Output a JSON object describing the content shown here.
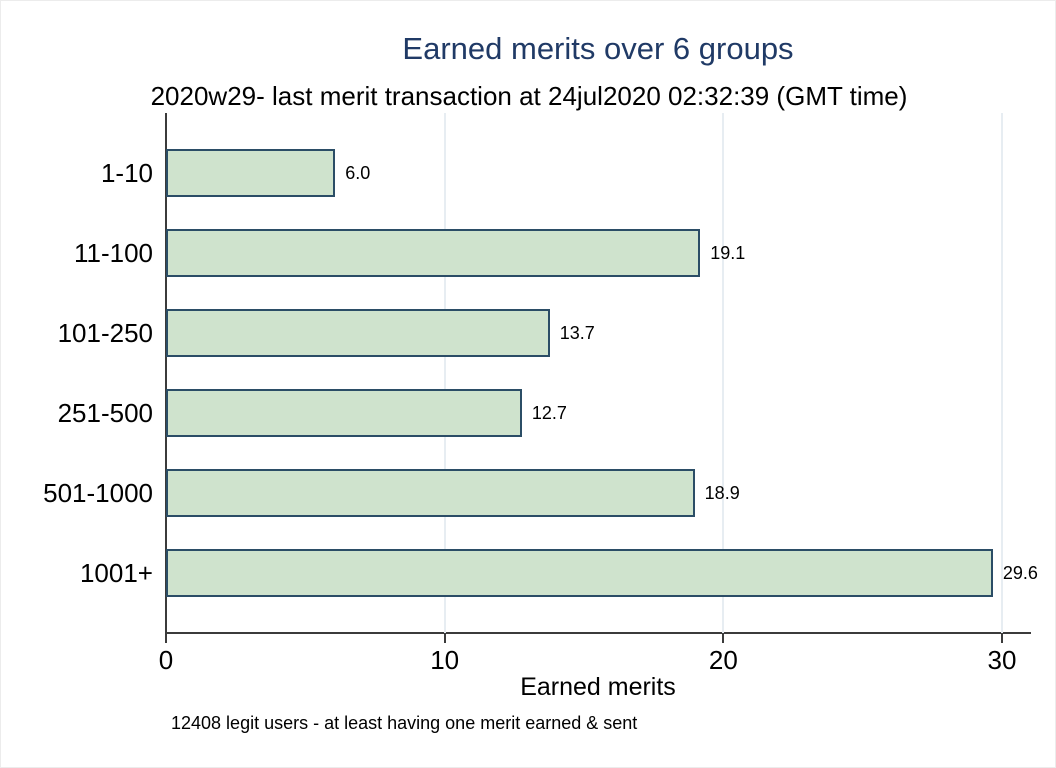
{
  "figure": {
    "note": "12408 legit users - at least having one merit earned & sent"
  },
  "chart_data": {
    "type": "bar",
    "orientation": "horizontal",
    "title": "Earned merits over 6 groups",
    "subtitle": "2020w29- last merit transaction at 24jul2020 02:32:39 (GMT time)",
    "categories": [
      "1-10",
      "11-100",
      "101-250",
      "251-500",
      "501-1000",
      "1001+"
    ],
    "values": [
      6.0,
      19.1,
      13.7,
      12.7,
      18.9,
      29.6
    ],
    "value_labels": [
      "6.0",
      "19.1",
      "13.7",
      "12.7",
      "18.9",
      "29.6"
    ],
    "xlabel": "Earned merits",
    "ylabel": "",
    "xlim": [
      0,
      31
    ],
    "xticks": [
      0,
      10,
      20,
      30
    ],
    "grid": true,
    "legend": "none",
    "colors": {
      "bar_fill": "#cfe3cd",
      "bar_border": "#2b4d66",
      "title": "#203a66",
      "grid": "#e7edf2",
      "axis": "#3b3b3b",
      "text": "#000000"
    }
  }
}
